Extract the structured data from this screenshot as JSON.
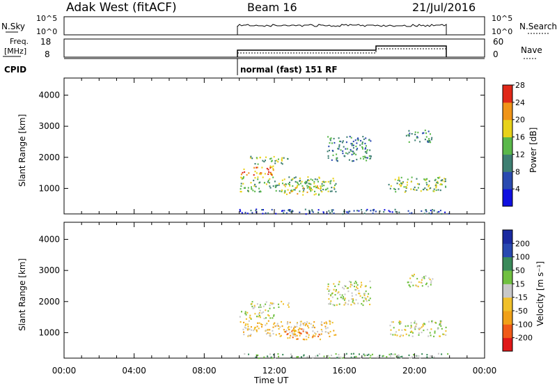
{
  "header": {
    "site": "Adak West (fitACF)",
    "beam": "Beam 16",
    "date": "21/Jul/2016"
  },
  "sky_panel": {
    "left_label": "N.Sky",
    "right_label": "N.Search",
    "left_ticks": [
      "10^5",
      "10^0"
    ],
    "right_ticks": [
      "10^5",
      "10^0"
    ]
  },
  "freq_panel": {
    "left_label_line1": "Freq.",
    "left_label_line2": "[MHz]",
    "right_label": "Nave",
    "left_ticks": [
      "18",
      "8"
    ],
    "right_ticks": [
      "60",
      "0"
    ]
  },
  "cpid": {
    "label": "CPID",
    "mode": "normal (fast) 151 RF"
  },
  "chart_data": [
    {
      "type": "heatmap",
      "panel": "power",
      "ylabel": "Slant Range [km]",
      "yticks": [
        "1000",
        "2000",
        "3000",
        "4000"
      ],
      "ylim": [
        180,
        4550
      ],
      "xlim": [
        0,
        24
      ],
      "colorbar": {
        "label": "Power [dB]",
        "ticks": [
          "4",
          "8",
          "12",
          "16",
          "20",
          "24",
          "28"
        ],
        "colors": [
          "#1010e0",
          "#2a4ab0",
          "#3e7f72",
          "#5ab84a",
          "#e8d21a",
          "#f09418",
          "#e02818"
        ]
      },
      "echo_regions": [
        {
          "t0": 10.0,
          "t1": 22.0,
          "r0": 200,
          "r1": 350,
          "level": 1
        },
        {
          "t0": 10.0,
          "t1": 12.0,
          "r0": 1450,
          "r1": 1750,
          "level": 5
        },
        {
          "t0": 10.6,
          "t1": 12.8,
          "r0": 1800,
          "r1": 2050,
          "level": 3
        },
        {
          "t0": 10.0,
          "t1": 15.5,
          "r0": 900,
          "r1": 1400,
          "level": 3
        },
        {
          "t0": 12.5,
          "t1": 14.6,
          "r0": 800,
          "r1": 1150,
          "level": 4
        },
        {
          "t0": 15.0,
          "t1": 17.5,
          "r0": 1900,
          "r1": 2700,
          "level": 2
        },
        {
          "t0": 18.5,
          "t1": 21.8,
          "r0": 900,
          "r1": 1400,
          "level": 3
        },
        {
          "t0": 19.5,
          "t1": 21.0,
          "r0": 2500,
          "r1": 2900,
          "level": 2
        }
      ]
    },
    {
      "type": "heatmap",
      "panel": "velocity",
      "ylabel": "Slant Range [km]",
      "yticks": [
        "1000",
        "2000",
        "3000",
        "4000"
      ],
      "ylim": [
        180,
        4550
      ],
      "xlim": [
        0,
        24
      ],
      "xlabel": "Time UT",
      "xticks": [
        "00:00",
        "04:00",
        "08:00",
        "12:00",
        "16:00",
        "20:00",
        "00:00"
      ],
      "colorbar": {
        "label": "Velocity [m s⁻¹]",
        "ticks": [
          "-200",
          "-100",
          "-50",
          "-15",
          "15",
          "50",
          "100",
          "200"
        ],
        "colors": [
          "#e01818",
          "#f05a18",
          "#f0a018",
          "#f0c02a",
          "#c8c8c8",
          "#70c040",
          "#3a8a5a",
          "#2848b0",
          "#1a2aa0"
        ]
      },
      "echo_regions": [
        {
          "t0": 10.0,
          "t1": 22.0,
          "r0": 200,
          "r1": 350,
          "level": 5
        },
        {
          "t0": 10.0,
          "t1": 12.0,
          "r0": 1450,
          "r1": 1750,
          "level": 4
        },
        {
          "t0": 10.6,
          "t1": 12.8,
          "r0": 1800,
          "r1": 2050,
          "level": 4
        },
        {
          "t0": 10.0,
          "t1": 15.5,
          "r0": 900,
          "r1": 1400,
          "level": 3
        },
        {
          "t0": 12.5,
          "t1": 14.6,
          "r0": 800,
          "r1": 1150,
          "level": 2
        },
        {
          "t0": 15.0,
          "t1": 17.5,
          "r0": 1900,
          "r1": 2700,
          "level": 4
        },
        {
          "t0": 18.5,
          "t1": 21.8,
          "r0": 900,
          "r1": 1400,
          "level": 4
        },
        {
          "t0": 19.5,
          "t1": 21.0,
          "r0": 2500,
          "r1": 2900,
          "level": 4
        }
      ]
    }
  ]
}
